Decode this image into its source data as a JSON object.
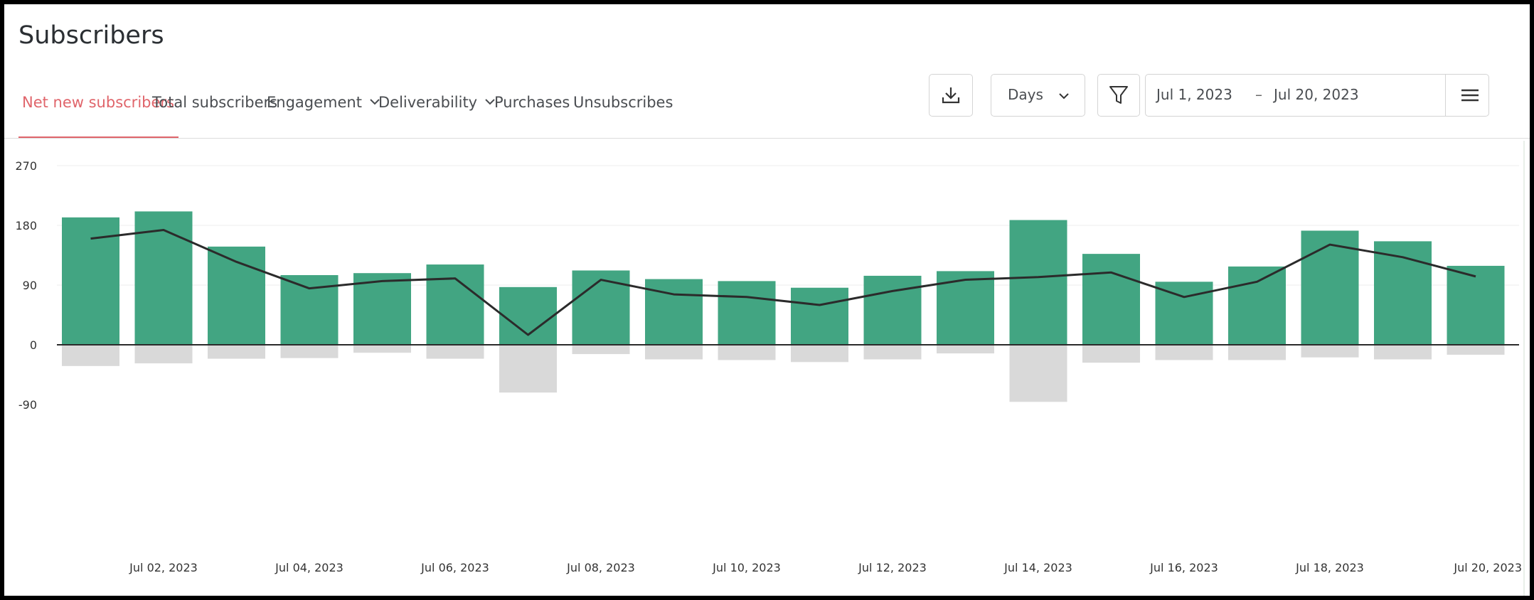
{
  "page": {
    "title": "Subscribers"
  },
  "tabs": [
    {
      "label": "Net new subscribers",
      "active": true,
      "dropdown": false
    },
    {
      "label": "Total subscribers",
      "active": false,
      "dropdown": false
    },
    {
      "label": "Engagement",
      "active": false,
      "dropdown": true
    },
    {
      "label": "Deliverability",
      "active": false,
      "dropdown": true
    },
    {
      "label": "Purchases",
      "active": false,
      "dropdown": false
    },
    {
      "label": "Unsubscribes",
      "active": false,
      "dropdown": false
    }
  ],
  "controls": {
    "download_icon": "download-icon",
    "granularity": "Days",
    "filter_icon": "filter-icon",
    "date_from": "Jul 1, 2023",
    "date_separator": "–",
    "date_to": "Jul 20, 2023",
    "menu_icon": "hamburger-icon"
  },
  "colors": {
    "accent": "#e0656b",
    "positive_bar": "#42a582",
    "negative_bar": "#d9d9d9",
    "line": "#2b2b2b"
  },
  "chart_data": {
    "type": "bar",
    "x": [
      "Jul 01, 2023",
      "Jul 02, 2023",
      "Jul 03, 2023",
      "Jul 04, 2023",
      "Jul 05, 2023",
      "Jul 06, 2023",
      "Jul 07, 2023",
      "Jul 08, 2023",
      "Jul 09, 2023",
      "Jul 10, 2023",
      "Jul 11, 2023",
      "Jul 12, 2023",
      "Jul 13, 2023",
      "Jul 14, 2023",
      "Jul 15, 2023",
      "Jul 16, 2023",
      "Jul 17, 2023",
      "Jul 18, 2023",
      "Jul 19, 2023",
      "Jul 20, 2023"
    ],
    "x_tick_labels": [
      "Jul 02, 2023",
      "Jul 04, 2023",
      "Jul 06, 2023",
      "Jul 08, 2023",
      "Jul 10, 2023",
      "Jul 12, 2023",
      "Jul 14, 2023",
      "Jul 16, 2023",
      "Jul 18, 2023",
      "Jul 20, 2023"
    ],
    "series": [
      {
        "kind": "bar",
        "values": [
          192,
          201,
          148,
          105,
          108,
          121,
          87,
          112,
          99,
          96,
          86,
          104,
          111,
          188,
          137,
          95,
          118,
          172,
          156,
          119
        ]
      },
      {
        "kind": "bar",
        "values": [
          -32,
          -28,
          -21,
          -20,
          -12,
          -21,
          -72,
          -14,
          -22,
          -23,
          -26,
          -22,
          -13,
          -86,
          -27,
          -23,
          -23,
          -19,
          -22,
          -15
        ]
      },
      {
        "kind": "line",
        "values": [
          160,
          173,
          125,
          85,
          96,
          100,
          15,
          98,
          76,
          72,
          60,
          81,
          98,
          102,
          109,
          72,
          95,
          151,
          132,
          103
        ]
      }
    ],
    "yticks": [
      270,
      180,
      90,
      0,
      -90
    ],
    "ylim": [
      -90,
      270
    ],
    "grid": true,
    "legend": "none"
  }
}
